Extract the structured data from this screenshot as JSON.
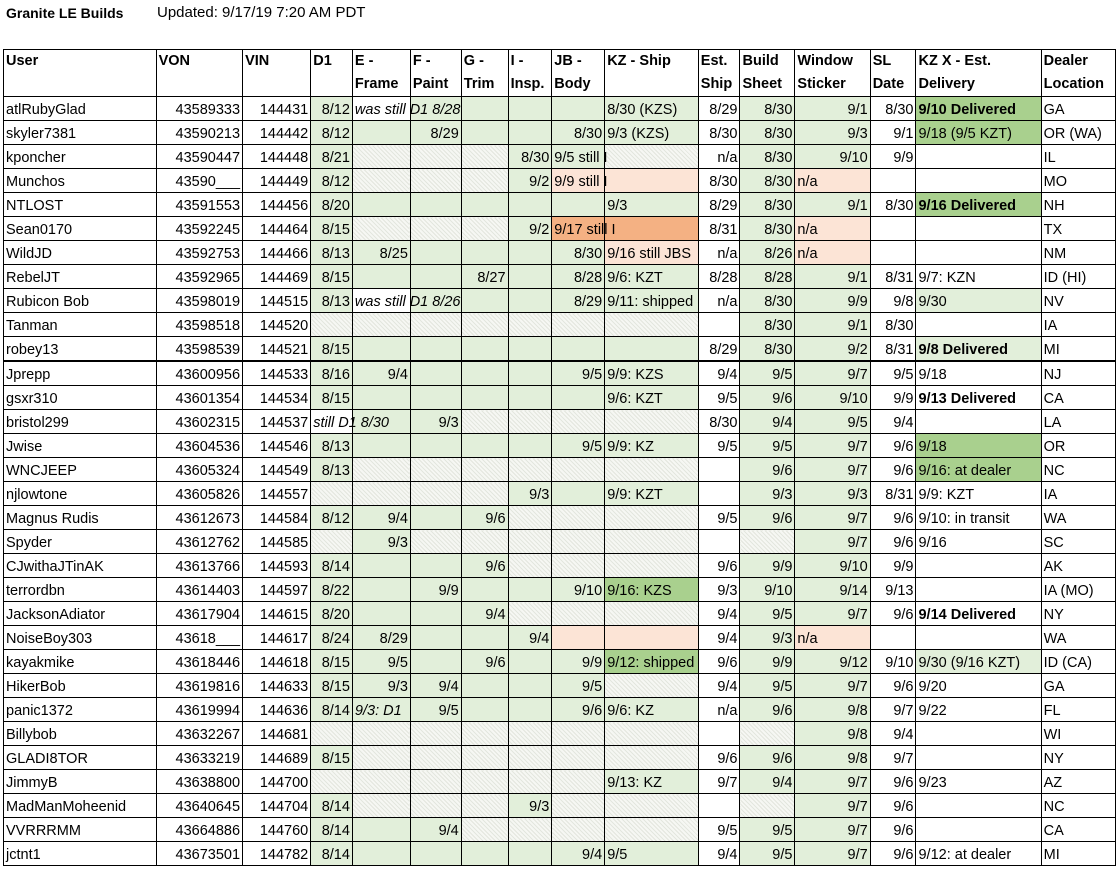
{
  "title": "Granite LE Builds",
  "updated": "Updated: 9/17/19 7:20 AM PDT",
  "columns": [
    {
      "key": "user",
      "label": "User"
    },
    {
      "key": "von",
      "label": "VON"
    },
    {
      "key": "vin",
      "label": "VIN"
    },
    {
      "key": "d1",
      "label": "D1"
    },
    {
      "key": "frame",
      "label": "E - Frame"
    },
    {
      "key": "paint",
      "label": "F - Paint"
    },
    {
      "key": "trim",
      "label": "G - Trim"
    },
    {
      "key": "insp",
      "label": "I - Insp."
    },
    {
      "key": "body",
      "label": "JB - Body"
    },
    {
      "key": "ship",
      "label": "KZ - Ship"
    },
    {
      "key": "est",
      "label": "Est. Ship"
    },
    {
      "key": "sheet",
      "label": "Build Sheet"
    },
    {
      "key": "sticker",
      "label": "Window Sticker"
    },
    {
      "key": "sl",
      "label": "SL Date"
    },
    {
      "key": "kzx",
      "label": "KZ X - Est. Delivery"
    },
    {
      "key": "loc",
      "label": "Dealer Location"
    }
  ],
  "rows": [
    {
      "user": "atlRubyGlad",
      "von": "43589333",
      "vin": "144431",
      "d1": "8/12",
      "frame": "was still D1 8/28",
      "paint": "",
      "trim": "",
      "insp": "",
      "body": "",
      "ship": "8/30 (KZS)",
      "est": "8/29",
      "sheet": "8/30",
      "sticker": "9/1",
      "sl": "8/30",
      "kzx": "9/10 Delivered",
      "loc": "GA"
    },
    {
      "user": "skyler7381",
      "von": "43590213",
      "vin": "144442",
      "d1": "8/12",
      "frame": "",
      "paint": "8/29",
      "trim": "",
      "insp": "",
      "body": "8/30",
      "ship": "9/3 (KZS)",
      "est": "8/30",
      "sheet": "8/30",
      "sticker": "9/3",
      "sl": "9/1",
      "kzx": "9/18 (9/5 KZT)",
      "loc": "OR (WA)"
    },
    {
      "user": "kponcher",
      "von": "43590447",
      "vin": "144448",
      "d1": "8/21",
      "frame": "",
      "paint": "",
      "trim": "",
      "insp": "8/30",
      "body": "9/5 still I",
      "ship": "",
      "est": "n/a",
      "sheet": "8/30",
      "sticker": "9/10",
      "sl": "9/9",
      "kzx": "",
      "loc": "IL"
    },
    {
      "user": "Munchos",
      "von": "43590___",
      "vin": "144449",
      "d1": "8/12",
      "frame": "",
      "paint": "",
      "trim": "",
      "insp": "9/2",
      "body": "9/9 still I",
      "ship": "",
      "est": "8/30",
      "sheet": "8/30",
      "sticker": "n/a",
      "sl": "",
      "kzx": "",
      "loc": "MO"
    },
    {
      "user": "NTLOST",
      "von": "43591553",
      "vin": "144456",
      "d1": "8/20",
      "frame": "",
      "paint": "",
      "trim": "",
      "insp": "",
      "body": "",
      "ship": "9/3",
      "est": "8/29",
      "sheet": "8/30",
      "sticker": "9/1",
      "sl": "8/30",
      "kzx": "9/16 Delivered",
      "loc": "NH"
    },
    {
      "user": "Sean0170",
      "von": "43592245",
      "vin": "144464",
      "d1": "8/15",
      "frame": "",
      "paint": "",
      "trim": "",
      "insp": "9/2",
      "body": "9/17 still I",
      "ship": "",
      "est": "8/31",
      "sheet": "8/30",
      "sticker": "n/a",
      "sl": "",
      "kzx": "",
      "loc": "TX"
    },
    {
      "user": "WildJD",
      "von": "43592753",
      "vin": "144466",
      "d1": "8/13",
      "frame": "8/25",
      "paint": "",
      "trim": "",
      "insp": "",
      "body": "8/30",
      "ship": "9/16 still JBS",
      "est": "n/a",
      "sheet": "8/26",
      "sticker": "n/a",
      "sl": "",
      "kzx": "",
      "loc": "NM"
    },
    {
      "user": "RebelJT",
      "von": "43592965",
      "vin": "144469",
      "d1": "8/15",
      "frame": "",
      "paint": "",
      "trim": "8/27",
      "insp": "",
      "body": "8/28",
      "ship": "9/6: KZT",
      "est": "8/28",
      "sheet": "8/28",
      "sticker": "9/1",
      "sl": "8/31",
      "kzx": "9/7: KZN",
      "loc": "ID (HI)"
    },
    {
      "user": "Rubicon Bob",
      "von": "43598019",
      "vin": "144515",
      "d1": "8/13",
      "frame": "was still D1 8/26",
      "paint": "",
      "trim": "",
      "insp": "",
      "body": "8/29",
      "ship": "9/11: shipped",
      "est": "n/a",
      "sheet": "8/30",
      "sticker": "9/9",
      "sl": "9/8",
      "kzx": "9/30",
      "loc": "NV"
    },
    {
      "user": "Tanman",
      "von": "43598518",
      "vin": "144520",
      "d1": "",
      "frame": "",
      "paint": "",
      "trim": "",
      "insp": "",
      "body": "",
      "ship": "",
      "est": "",
      "sheet": "8/30",
      "sticker": "9/1",
      "sl": "8/30",
      "kzx": "",
      "loc": "IA"
    },
    {
      "user": "robey13",
      "von": "43598539",
      "vin": "144521",
      "d1": "8/15",
      "frame": "",
      "paint": "",
      "trim": "",
      "insp": "",
      "body": "",
      "ship": "",
      "est": "8/29",
      "sheet": "8/30",
      "sticker": "9/2",
      "sl": "8/31",
      "kzx": "9/8 Delivered",
      "loc": "MI"
    },
    {
      "user": "Jprepp",
      "von": "43600956",
      "vin": "144533",
      "d1": "8/16",
      "frame": "9/4",
      "paint": "",
      "trim": "",
      "insp": "",
      "body": "9/5",
      "ship": "9/9: KZS",
      "est": "9/4",
      "sheet": "9/5",
      "sticker": "9/7",
      "sl": "9/5",
      "kzx": "9/18",
      "loc": "NJ"
    },
    {
      "user": "gsxr310",
      "von": "43601354",
      "vin": "144534",
      "d1": "8/15",
      "frame": "",
      "paint": "",
      "trim": "",
      "insp": "",
      "body": "",
      "ship": "9/6: KZT",
      "est": "9/5",
      "sheet": "9/6",
      "sticker": "9/10",
      "sl": "9/9",
      "kzx": "9/13 Delivered",
      "loc": "CA"
    },
    {
      "user": "bristol299",
      "von": "43602315",
      "vin": "144537",
      "d1": "still D1 8/30",
      "frame": "",
      "paint": "9/3",
      "trim": "",
      "insp": "",
      "body": "",
      "ship": "",
      "est": "8/30",
      "sheet": "9/4",
      "sticker": "9/5",
      "sl": "9/4",
      "kzx": "",
      "loc": "LA"
    },
    {
      "user": "Jwise",
      "von": "43604536",
      "vin": "144546",
      "d1": "8/13",
      "frame": "",
      "paint": "",
      "trim": "",
      "insp": "",
      "body": "9/5",
      "ship": "9/9: KZ",
      "est": "9/5",
      "sheet": "9/5",
      "sticker": "9/7",
      "sl": "9/6",
      "kzx": "9/18",
      "loc": "OR"
    },
    {
      "user": "WNCJEEP",
      "von": "43605324",
      "vin": "144549",
      "d1": "8/13",
      "frame": "",
      "paint": "",
      "trim": "",
      "insp": "",
      "body": "",
      "ship": "",
      "est": "",
      "sheet": "9/6",
      "sticker": "9/7",
      "sl": "9/6",
      "kzx": "9/16: at dealer",
      "loc": "NC"
    },
    {
      "user": "njlowtone",
      "von": "43605826",
      "vin": "144557",
      "d1": "",
      "frame": "",
      "paint": "",
      "trim": "",
      "insp": "9/3",
      "body": "",
      "ship": "9/9: KZT",
      "est": "",
      "sheet": "9/3",
      "sticker": "9/3",
      "sl": "8/31",
      "kzx": "9/9: KZT",
      "loc": "IA"
    },
    {
      "user": "Magnus Rudis",
      "von": "43612673",
      "vin": "144584",
      "d1": "8/12",
      "frame": "9/4",
      "paint": "",
      "trim": "9/6",
      "insp": "",
      "body": "",
      "ship": "",
      "est": "9/5",
      "sheet": "9/6",
      "sticker": "9/7",
      "sl": "9/6",
      "kzx": "9/10: in transit",
      "loc": "WA"
    },
    {
      "user": "Spyder",
      "von": "43612762",
      "vin": "144585",
      "d1": "",
      "frame": "9/3",
      "paint": "",
      "trim": "",
      "insp": "",
      "body": "",
      "ship": "",
      "est": "",
      "sheet": "",
      "sticker": "9/7",
      "sl": "9/6",
      "kzx": "9/16",
      "loc": "SC"
    },
    {
      "user": "CJwithaJTinAK",
      "von": "43613766",
      "vin": "144593",
      "d1": "8/14",
      "frame": "",
      "paint": "",
      "trim": "9/6",
      "insp": "",
      "body": "",
      "ship": "",
      "est": "9/6",
      "sheet": "9/9",
      "sticker": "9/10",
      "sl": "9/9",
      "kzx": "",
      "loc": "AK"
    },
    {
      "user": "terrordbn",
      "von": "43614403",
      "vin": "144597",
      "d1": "8/22",
      "frame": "",
      "paint": "9/9",
      "trim": "",
      "insp": "",
      "body": "9/10",
      "ship": "9/16: KZS",
      "est": "9/3",
      "sheet": "9/10",
      "sticker": "9/14",
      "sl": "9/13",
      "kzx": "",
      "loc": "IA (MO)"
    },
    {
      "user": "JacksonAdiator",
      "von": "43617904",
      "vin": "144615",
      "d1": "8/20",
      "frame": "",
      "paint": "",
      "trim": "9/4",
      "insp": "",
      "body": "",
      "ship": "",
      "est": "9/4",
      "sheet": "9/5",
      "sticker": "9/7",
      "sl": "9/6",
      "kzx": "9/14 Delivered",
      "loc": "NY"
    },
    {
      "user": "NoiseBoy303",
      "von": "43618___",
      "vin": "144617",
      "d1": "8/24",
      "frame": "8/29",
      "paint": "",
      "trim": "",
      "insp": "9/4",
      "body": "",
      "ship": "",
      "est": "9/4",
      "sheet": "9/3",
      "sticker": "n/a",
      "sl": "",
      "kzx": "",
      "loc": "WA"
    },
    {
      "user": "kayakmike",
      "von": "43618446",
      "vin": "144618",
      "d1": "8/15",
      "frame": "9/5",
      "paint": "",
      "trim": "9/6",
      "insp": "",
      "body": "9/9",
      "ship": "9/12: shipped",
      "est": "9/6",
      "sheet": "9/9",
      "sticker": "9/12",
      "sl": "9/10",
      "kzx": "9/30 (9/16 KZT)",
      "loc": "ID (CA)"
    },
    {
      "user": "HikerBob",
      "von": "43619816",
      "vin": "144633",
      "d1": "8/15",
      "frame": "9/3",
      "paint": "9/4",
      "trim": "",
      "insp": "",
      "body": "9/5",
      "ship": "",
      "est": "9/4",
      "sheet": "9/5",
      "sticker": "9/7",
      "sl": "9/6",
      "kzx": "9/20",
      "loc": "GA"
    },
    {
      "user": "panic1372",
      "von": "43619994",
      "vin": "144636",
      "d1": "8/14",
      "frame": "9/3: D1",
      "paint": "9/5",
      "trim": "",
      "insp": "",
      "body": "9/6",
      "ship": "9/6: KZ",
      "est": "n/a",
      "sheet": "9/6",
      "sticker": "9/8",
      "sl": "9/7",
      "kzx": "9/22",
      "loc": "FL"
    },
    {
      "user": "Billybob",
      "von": "43632267",
      "vin": "144681",
      "d1": "",
      "frame": "",
      "paint": "",
      "trim": "",
      "insp": "",
      "body": "",
      "ship": "",
      "est": "",
      "sheet": "",
      "sticker": "9/8",
      "sl": "9/4",
      "kzx": "",
      "loc": "WI"
    },
    {
      "user": "GLADI8TOR",
      "von": "43633219",
      "vin": "144689",
      "d1": "8/15",
      "frame": "",
      "paint": "",
      "trim": "",
      "insp": "",
      "body": "",
      "ship": "",
      "est": "9/6",
      "sheet": "9/6",
      "sticker": "9/8",
      "sl": "9/7",
      "kzx": "",
      "loc": "NY"
    },
    {
      "user": "JimmyB",
      "von": "43638800",
      "vin": "144700",
      "d1": "",
      "frame": "",
      "paint": "",
      "trim": "",
      "insp": "",
      "body": "",
      "ship": "9/13: KZ",
      "est": "9/7",
      "sheet": "9/4",
      "sticker": "9/7",
      "sl": "9/6",
      "kzx": "9/23",
      "loc": "AZ"
    },
    {
      "user": "MadManMoheenid",
      "von": "43640645",
      "vin": "144704",
      "d1": "8/14",
      "frame": "",
      "paint": "",
      "trim": "",
      "insp": "9/3",
      "body": "",
      "ship": "",
      "est": "",
      "sheet": "",
      "sticker": "9/7",
      "sl": "9/6",
      "kzx": "",
      "loc": "NC"
    },
    {
      "user": "VVRRRMM",
      "von": "43664886",
      "vin": "144760",
      "d1": "8/14",
      "frame": "",
      "paint": "9/4",
      "trim": "",
      "insp": "",
      "body": "",
      "ship": "",
      "est": "9/5",
      "sheet": "9/5",
      "sticker": "9/7",
      "sl": "9/6",
      "kzx": "",
      "loc": "CA"
    },
    {
      "user": "jctnt1",
      "von": "43673501",
      "vin": "144782",
      "d1": "8/14",
      "frame": "",
      "paint": "",
      "trim": "",
      "insp": "",
      "body": "9/4",
      "ship": "9/5",
      "est": "9/4",
      "sheet": "9/5",
      "sticker": "9/7",
      "sl": "9/6",
      "kzx": "9/12: at dealer",
      "loc": "MI"
    }
  ],
  "colors": {
    "green_light": "#e2efda",
    "green_dark": "#a9d08e",
    "peach": "#fce4d6",
    "orange": "#f4b183",
    "hatch": "#eef1ea"
  }
}
